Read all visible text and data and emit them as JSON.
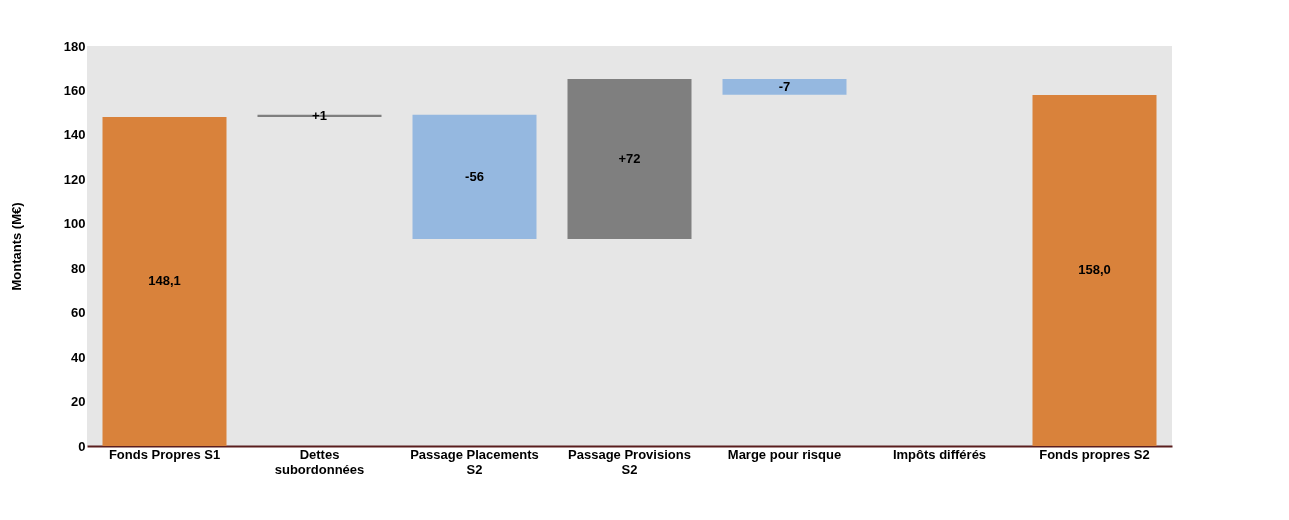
{
  "chart_data": {
    "type": "bar",
    "ylabel": "Montants (M€)",
    "categories": [
      "Fonds Propres S1",
      "Dettes subordonnées",
      "Passage Placements S2",
      "Passage Provisions S2",
      "Marge pour risque",
      "Impôts différés",
      "Fonds propres S2"
    ],
    "base": [
      0,
      148.1,
      149.1,
      93.1,
      165.1,
      null,
      0
    ],
    "values": [
      148.1,
      1,
      -56,
      72,
      -7,
      null,
      158.0
    ],
    "colors": [
      "#d9823b",
      "#7f7f7f",
      "#95b8e0",
      "#7f7f7f",
      "#95b8e0",
      "#95b8e0",
      "#d9823b"
    ],
    "value_labels": [
      "148,1",
      "+1",
      "-56",
      "+72",
      "-7",
      null,
      "158,0"
    ],
    "ylim": [
      0,
      180
    ],
    "yticks": [
      0,
      20,
      40,
      60,
      80,
      100,
      120,
      140,
      160,
      180
    ],
    "grid": false
  }
}
